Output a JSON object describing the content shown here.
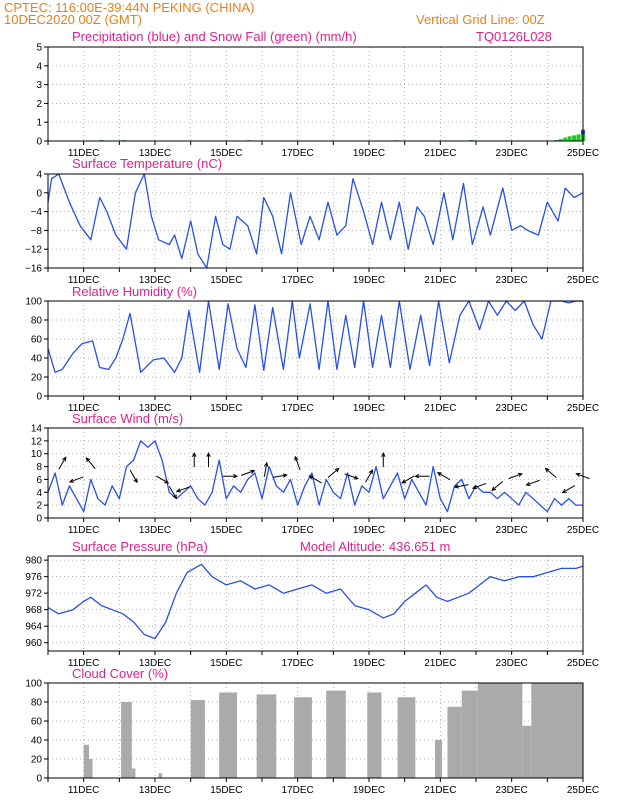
{
  "header": {
    "line1": "CPTEC:   116:00E-39:44N   PEKING (CHINA)",
    "line2": "10DEC2020 00Z (GMT)",
    "grid_note": "Vertical Grid Line: 00Z",
    "code": "TQ0126L028"
  },
  "colors": {
    "header_text": "#e8801a",
    "title_text": "#e0208e",
    "precip_rain": "#2050e0",
    "precip_snow": "#22cc22",
    "line": "#2850e8",
    "cloud": "#aaaaaa",
    "arrow": "#000000",
    "grid": "#999999"
  },
  "day_labels": [
    "11DEC",
    "13DEC",
    "15DEC",
    "17DEC",
    "19DEC",
    "21DEC",
    "23DEC",
    "25DEC"
  ],
  "chart_data": [
    {
      "id": "precip",
      "type": "bar",
      "title": "Precipitation (blue) and Snow Fall (green) (mm/h)",
      "ylim": [
        0,
        5
      ],
      "yticks": [
        0,
        1,
        2,
        3,
        4,
        5
      ],
      "x_range_days": [
        0,
        15
      ],
      "x_step_days": 0.125,
      "grid": true,
      "series": [
        {
          "name": "Precipitation",
          "color_key": "precip_rain",
          "values_sparse": [
            [
              14.625,
              0.05
            ],
            [
              14.75,
              0.1
            ],
            [
              14.875,
              0.25
            ],
            [
              15.0,
              0.6
            ]
          ]
        },
        {
          "name": "Snow Fall",
          "color_key": "precip_snow",
          "values_sparse": [
            [
              1.5,
              0.05
            ],
            [
              2.125,
              0.05
            ],
            [
              4.5,
              0.03
            ],
            [
              5.625,
              0.04
            ],
            [
              6.5,
              0.03
            ],
            [
              9.75,
              0.04
            ],
            [
              11.875,
              0.05
            ],
            [
              14.25,
              0.05
            ],
            [
              14.375,
              0.1
            ],
            [
              14.5,
              0.18
            ],
            [
              14.625,
              0.25
            ],
            [
              14.75,
              0.3
            ],
            [
              14.875,
              0.35
            ],
            [
              15.0,
              0.35
            ]
          ]
        }
      ]
    },
    {
      "id": "temperature",
      "type": "line",
      "title": "Surface Temperature (nC)",
      "ylim": [
        -16,
        4
      ],
      "yticks": [
        4,
        0,
        -4,
        -8,
        -12,
        -16
      ],
      "x_range_days": [
        0,
        15
      ],
      "grid": true,
      "series": [
        {
          "name": "Surface Temperature",
          "color_key": "line",
          "x": [
            0,
            0.1,
            0.3,
            0.6,
            0.9,
            1.2,
            1.45,
            1.65,
            1.9,
            2.2,
            2.45,
            2.7,
            2.9,
            3.1,
            3.4,
            3.55,
            3.75,
            4.0,
            4.2,
            4.45,
            4.7,
            4.9,
            5.1,
            5.3,
            5.6,
            5.85,
            6.05,
            6.3,
            6.55,
            6.8,
            7.1,
            7.35,
            7.6,
            7.85,
            8.1,
            8.35,
            8.55,
            8.85,
            9.1,
            9.35,
            9.6,
            9.85,
            10.1,
            10.35,
            10.55,
            10.8,
            11.1,
            11.35,
            11.65,
            11.9,
            12.2,
            12.4,
            12.75,
            13.0,
            13.25,
            13.45,
            13.75,
            14.0,
            14.3,
            14.5,
            14.75,
            15.0
          ],
          "y": [
            -2,
            3,
            4,
            -2,
            -7,
            -10,
            -1,
            -4,
            -9,
            -12,
            0,
            4,
            -5,
            -10,
            -11,
            -9,
            -14,
            -6,
            -13,
            -16,
            -5,
            -11,
            -12,
            -5,
            -7,
            -13,
            -1,
            -5,
            -13,
            0,
            -11,
            -5,
            -10,
            -2,
            -9,
            -7,
            3,
            -4,
            -11,
            -2,
            -10,
            -2,
            -12,
            -3,
            -5,
            -11,
            0,
            -10,
            2,
            -11,
            -3,
            -9,
            1,
            -8,
            -7,
            -8,
            -9,
            -2,
            -6,
            1,
            -1,
            0
          ]
        }
      ]
    },
    {
      "id": "humidity",
      "type": "line",
      "title": "Relative Humidity (%)",
      "ylim": [
        0,
        100
      ],
      "yticks": [
        0,
        20,
        40,
        60,
        80,
        100
      ],
      "x_range_days": [
        0,
        15
      ],
      "grid": true,
      "series": [
        {
          "name": "Relative Humidity",
          "color_key": "line",
          "x": [
            0,
            0.2,
            0.4,
            0.7,
            0.95,
            1.25,
            1.45,
            1.7,
            1.9,
            2.1,
            2.3,
            2.6,
            2.95,
            3.25,
            3.55,
            3.75,
            3.95,
            4.25,
            4.5,
            4.8,
            5.05,
            5.3,
            5.55,
            5.8,
            6.05,
            6.3,
            6.6,
            6.85,
            7.05,
            7.35,
            7.6,
            7.85,
            8.1,
            8.35,
            8.6,
            8.85,
            9.1,
            9.35,
            9.6,
            9.85,
            10.15,
            10.45,
            10.7,
            10.95,
            11.25,
            11.55,
            11.8,
            12.1,
            12.35,
            12.6,
            12.85,
            13.1,
            13.35,
            13.6,
            13.85,
            14.1,
            14.4,
            14.6,
            14.8,
            15.0
          ],
          "y": [
            50,
            25,
            28,
            45,
            55,
            58,
            30,
            28,
            40,
            60,
            87,
            25,
            38,
            40,
            25,
            40,
            90,
            25,
            100,
            28,
            97,
            50,
            30,
            96,
            27,
            93,
            28,
            100,
            40,
            97,
            28,
            100,
            28,
            85,
            30,
            100,
            30,
            85,
            30,
            100,
            28,
            85,
            32,
            100,
            35,
            85,
            100,
            70,
            100,
            85,
            100,
            90,
            100,
            75,
            60,
            100,
            100,
            98,
            100,
            100
          ]
        }
      ]
    },
    {
      "id": "wind",
      "type": "line",
      "title": "Surface Wind (m/s)",
      "ylim": [
        0,
        14
      ],
      "yticks": [
        0,
        2,
        4,
        6,
        8,
        10,
        12,
        14
      ],
      "x_range_days": [
        0,
        15
      ],
      "grid": true,
      "series": [
        {
          "name": "Surface Wind",
          "color_key": "line",
          "x": [
            0,
            0.2,
            0.4,
            0.6,
            0.8,
            1.0,
            1.2,
            1.4,
            1.6,
            1.8,
            2.0,
            2.2,
            2.4,
            2.6,
            2.8,
            3.0,
            3.2,
            3.4,
            3.6,
            3.8,
            4.0,
            4.2,
            4.4,
            4.6,
            4.8,
            5.0,
            5.2,
            5.4,
            5.6,
            5.8,
            6.0,
            6.2,
            6.4,
            6.6,
            6.8,
            7.0,
            7.2,
            7.4,
            7.6,
            7.8,
            8.0,
            8.2,
            8.4,
            8.6,
            8.8,
            9.0,
            9.2,
            9.4,
            9.6,
            9.8,
            10.0,
            10.2,
            10.4,
            10.6,
            10.8,
            11.0,
            11.2,
            11.4,
            11.6,
            11.8,
            12.0,
            12.2,
            12.4,
            12.6,
            12.8,
            13.0,
            13.2,
            13.4,
            13.6,
            13.8,
            14.0,
            14.2,
            14.4,
            14.6,
            14.8,
            15.0
          ],
          "y": [
            4,
            7,
            2,
            5,
            3,
            1,
            6,
            3,
            2,
            5,
            3,
            8,
            9,
            12,
            11,
            12,
            9,
            4,
            3,
            4,
            5,
            3,
            2,
            4,
            9,
            3,
            5,
            4,
            6,
            7,
            3,
            8,
            5,
            4,
            6,
            2,
            5,
            7,
            2,
            6,
            4,
            3,
            7,
            2,
            5,
            4,
            8,
            3,
            5,
            7,
            3,
            6,
            4,
            2,
            8,
            3,
            1,
            5,
            6,
            3,
            5,
            4,
            4,
            3,
            4,
            3,
            2,
            4,
            3,
            2,
            1,
            3,
            2,
            3,
            2,
            2
          ]
        }
      ],
      "wind_arrows": [
        {
          "x": 0.4,
          "y": 8.5,
          "dir_deg": 60
        },
        {
          "x": 0.8,
          "y": 6,
          "dir_deg": 200
        },
        {
          "x": 1.2,
          "y": 8.5,
          "dir_deg": 130
        },
        {
          "x": 2.4,
          "y": 6.5,
          "dir_deg": 300
        },
        {
          "x": 3.2,
          "y": 6,
          "dir_deg": 330
        },
        {
          "x": 3.5,
          "y": 4,
          "dir_deg": 300
        },
        {
          "x": 3.8,
          "y": 4.5,
          "dir_deg": 200
        },
        {
          "x": 4.1,
          "y": 9,
          "dir_deg": 90
        },
        {
          "x": 4.5,
          "y": 9,
          "dir_deg": 90
        },
        {
          "x": 5.1,
          "y": 6.5,
          "dir_deg": 0
        },
        {
          "x": 5.6,
          "y": 7,
          "dir_deg": 20
        },
        {
          "x": 6.1,
          "y": 7.5,
          "dir_deg": 80
        },
        {
          "x": 6.5,
          "y": 6.5,
          "dir_deg": 10
        },
        {
          "x": 7.0,
          "y": 8.5,
          "dir_deg": 110
        },
        {
          "x": 7.5,
          "y": 6,
          "dir_deg": 150
        },
        {
          "x": 8.0,
          "y": 7,
          "dir_deg": 40
        },
        {
          "x": 8.5,
          "y": 6.5,
          "dir_deg": 340
        },
        {
          "x": 9.0,
          "y": 6.5,
          "dir_deg": 60
        },
        {
          "x": 9.4,
          "y": 9,
          "dir_deg": 90
        },
        {
          "x": 10.1,
          "y": 6,
          "dir_deg": 210
        },
        {
          "x": 10.5,
          "y": 6.5,
          "dir_deg": 180
        },
        {
          "x": 11.1,
          "y": 6.5,
          "dir_deg": 150
        },
        {
          "x": 11.6,
          "y": 5,
          "dir_deg": 190
        },
        {
          "x": 12.1,
          "y": 5,
          "dir_deg": 200
        },
        {
          "x": 12.6,
          "y": 5,
          "dir_deg": 220
        },
        {
          "x": 13.1,
          "y": 6.5,
          "dir_deg": 20
        },
        {
          "x": 13.6,
          "y": 5.5,
          "dir_deg": 200
        },
        {
          "x": 14.1,
          "y": 7,
          "dir_deg": 140
        },
        {
          "x": 14.6,
          "y": 4.5,
          "dir_deg": 210
        },
        {
          "x": 15.0,
          "y": 6.5,
          "dir_deg": 160
        }
      ]
    },
    {
      "id": "pressure",
      "type": "line",
      "title": "Surface Pressure (hPa)",
      "subtitle": "Model Altitude: 436.651  m",
      "ylim": [
        958,
        981
      ],
      "yticks": [
        960,
        964,
        968,
        972,
        976,
        980
      ],
      "x_range_days": [
        0,
        15
      ],
      "grid": true,
      "series": [
        {
          "name": "Surface Pressure",
          "color_key": "line",
          "x": [
            0,
            0.3,
            0.7,
            1.0,
            1.2,
            1.5,
            1.8,
            2.1,
            2.4,
            2.7,
            3.0,
            3.3,
            3.6,
            3.9,
            4.1,
            4.3,
            4.6,
            5.0,
            5.4,
            5.8,
            6.2,
            6.6,
            7.0,
            7.4,
            7.8,
            8.2,
            8.6,
            9.0,
            9.4,
            9.7,
            10.0,
            10.3,
            10.6,
            10.9,
            11.2,
            11.5,
            11.8,
            12.1,
            12.4,
            12.8,
            13.2,
            13.6,
            14.0,
            14.4,
            14.8,
            15.0
          ],
          "y": [
            968.5,
            967,
            968,
            970,
            971,
            969,
            968,
            967,
            965,
            962,
            961,
            965,
            972,
            977,
            978,
            979,
            976,
            974,
            975,
            973,
            974,
            972,
            973,
            974,
            972,
            973,
            969,
            968,
            966,
            967,
            970,
            972,
            974,
            971,
            970,
            971,
            972,
            974,
            976,
            975,
            976,
            976,
            977,
            978,
            978,
            978.5
          ]
        }
      ]
    },
    {
      "id": "cloud",
      "type": "bar",
      "title": "Cloud Cover (%)",
      "ylim": [
        0,
        100
      ],
      "yticks": [
        0,
        20,
        40,
        60,
        80,
        100
      ],
      "x_range_days": [
        0,
        15
      ],
      "grid": true,
      "blocks": [
        {
          "x0": 1.0,
          "x1": 1.15,
          "h": 35
        },
        {
          "x0": 1.15,
          "x1": 1.25,
          "h": 20
        },
        {
          "x0": 2.05,
          "x1": 2.35,
          "h": 80
        },
        {
          "x0": 2.35,
          "x1": 2.45,
          "h": 10
        },
        {
          "x0": 3.1,
          "x1": 3.2,
          "h": 5
        },
        {
          "x0": 4.0,
          "x1": 4.4,
          "h": 82
        },
        {
          "x0": 4.8,
          "x1": 5.3,
          "h": 90
        },
        {
          "x0": 5.85,
          "x1": 6.4,
          "h": 88
        },
        {
          "x0": 6.9,
          "x1": 7.4,
          "h": 85
        },
        {
          "x0": 7.8,
          "x1": 8.35,
          "h": 92
        },
        {
          "x0": 8.95,
          "x1": 9.35,
          "h": 90
        },
        {
          "x0": 9.8,
          "x1": 10.3,
          "h": 85
        },
        {
          "x0": 10.85,
          "x1": 11.05,
          "h": 40
        },
        {
          "x0": 11.2,
          "x1": 11.6,
          "h": 75
        },
        {
          "x0": 11.6,
          "x1": 12.05,
          "h": 92
        },
        {
          "x0": 12.05,
          "x1": 13.3,
          "h": 100
        },
        {
          "x0": 13.3,
          "x1": 13.55,
          "h": 55
        },
        {
          "x0": 13.55,
          "x1": 15.0,
          "h": 100
        }
      ]
    }
  ]
}
